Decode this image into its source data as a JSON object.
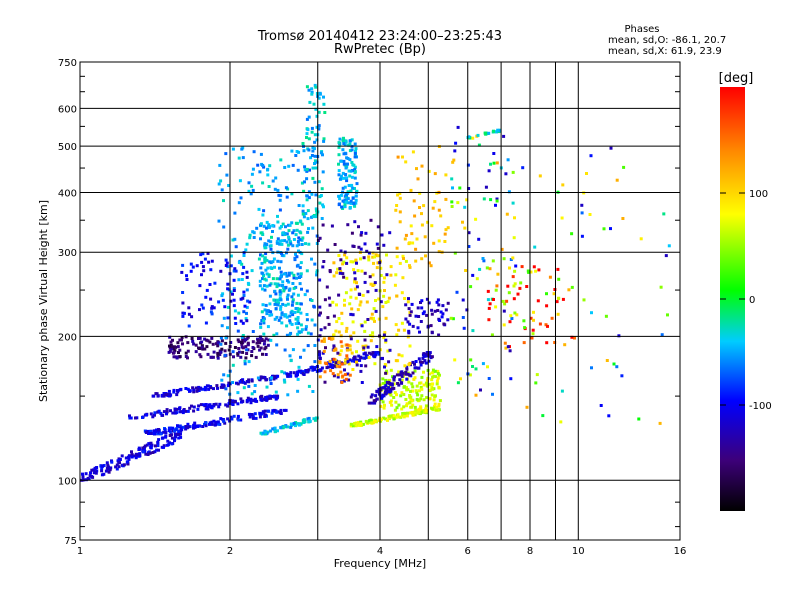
{
  "chart_data": {
    "type": "scatter",
    "title": "Tromsø 20140412 23:24:00–23:25:43",
    "subtitle": "RwPretec (Bp)",
    "xlabel": "Frequency [MHz]",
    "ylabel": "Stationary phase Virtual Height [km]",
    "x_scale": "log",
    "y_scale": "log",
    "xlim": [
      1,
      16
    ],
    "ylim": [
      75,
      750
    ],
    "x_ticks": [
      1,
      2,
      4,
      6,
      8,
      10,
      16
    ],
    "x_tick_labels": [
      "1",
      "2",
      "4",
      "6",
      "8",
      "10",
      "16"
    ],
    "x_grid": [
      1,
      2,
      3,
      4,
      5,
      6,
      7,
      8,
      9,
      10,
      16
    ],
    "y_ticks": [
      75,
      100,
      200,
      300,
      400,
      500,
      600,
      750
    ],
    "y_tick_labels": [
      "75",
      "100",
      "200",
      "300",
      "400",
      "500",
      "600",
      "750"
    ],
    "y_grid": [
      100,
      200,
      300,
      400,
      500,
      600
    ],
    "grid": true,
    "stats": {
      "heading": "Phases",
      "o_line": "mean, sd,O: -86.1, 20.7",
      "x_line": "mean, sd,X: 61.9, 23.9"
    },
    "colorbar": {
      "title": "[deg]",
      "range": [
        -200,
        200
      ],
      "ticks": [
        100,
        0,
        -100
      ],
      "tick_labels": [
        "100",
        "0",
        "-100"
      ],
      "colormap": "rainbow"
    },
    "clusters": [
      {
        "x": [
          1.0,
          1.6
        ],
        "y": [
          100,
          125
        ],
        "phase": -110,
        "shape": "line",
        "n": 140
      },
      {
        "x": [
          1.35,
          2.6
        ],
        "y": [
          125,
          140
        ],
        "phase": -100,
        "shape": "line",
        "n": 140
      },
      {
        "x": [
          1.25,
          2.5
        ],
        "y": [
          135,
          150
        ],
        "phase": -110,
        "shape": "line",
        "n": 120
      },
      {
        "x": [
          1.4,
          2.5
        ],
        "y": [
          150,
          165
        ],
        "phase": -110,
        "shape": "line",
        "n": 100
      },
      {
        "x": [
          1.5,
          2.4
        ],
        "y": [
          180,
          200
        ],
        "phase": -150,
        "shape": "cloud",
        "n": 150
      },
      {
        "x": [
          1.9,
          3.0
        ],
        "y": [
          150,
          500
        ],
        "phase": -50,
        "shape": "cloud",
        "n": 260
      },
      {
        "x": [
          2.3,
          2.8
        ],
        "y": [
          200,
          350
        ],
        "phase": -45,
        "shape": "cloud",
        "n": 220
      },
      {
        "x": [
          2.8,
          3.1
        ],
        "y": [
          350,
          680
        ],
        "phase": -40,
        "shape": "cloud",
        "n": 90
      },
      {
        "x": [
          3.3,
          3.6
        ],
        "y": [
          370,
          520
        ],
        "phase": -45,
        "shape": "cloud",
        "n": 120
      },
      {
        "x": [
          1.6,
          2.2
        ],
        "y": [
          210,
          300
        ],
        "phase": -100,
        "shape": "cloud",
        "n": 80
      },
      {
        "x": [
          2.6,
          4.0
        ],
        "y": [
          165,
          185
        ],
        "phase": -110,
        "shape": "line",
        "n": 110
      },
      {
        "x": [
          2.3,
          3.0
        ],
        "y": [
          125,
          135
        ],
        "phase": -40,
        "shape": "line",
        "n": 60
      },
      {
        "x": [
          3.5,
          5.0
        ],
        "y": [
          130,
          140
        ],
        "phase": 65,
        "shape": "line",
        "n": 120
      },
      {
        "x": [
          4.0,
          5.3
        ],
        "y": [
          140,
          170
        ],
        "phase": 65,
        "shape": "cloud",
        "n": 160
      },
      {
        "x": [
          3.8,
          5.1
        ],
        "y": [
          145,
          185
        ],
        "phase": -120,
        "shape": "line",
        "n": 110
      },
      {
        "x": [
          3.2,
          4.6
        ],
        "y": [
          170,
          300
        ],
        "phase": 90,
        "shape": "cloud",
        "n": 160
      },
      {
        "x": [
          3.0,
          4.2
        ],
        "y": [
          160,
          350
        ],
        "phase": -130,
        "shape": "cloud",
        "n": 120
      },
      {
        "x": [
          3.0,
          3.5
        ],
        "y": [
          160,
          200
        ],
        "phase": 140,
        "shape": "cloud",
        "n": 40
      },
      {
        "x": [
          4.3,
          5.5
        ],
        "y": [
          280,
          500
        ],
        "phase": 110,
        "shape": "cloud",
        "n": 60
      },
      {
        "x": [
          4.5,
          5.5
        ],
        "y": [
          200,
          240
        ],
        "phase": -120,
        "shape": "cloud",
        "n": 50
      },
      {
        "x": [
          5.5,
          7.5
        ],
        "y": [
          150,
          550
        ],
        "phase": 0,
        "shape": "sparse",
        "n": 90
      },
      {
        "x": [
          6.0,
          7.0
        ],
        "y": [
          520,
          540
        ],
        "phase": -30,
        "shape": "line",
        "n": 20
      },
      {
        "x": [
          6.5,
          10.0
        ],
        "y": [
          190,
          280
        ],
        "phase": 150,
        "shape": "sparse",
        "n": 70
      },
      {
        "x": [
          7.0,
          16.0
        ],
        "y": [
          130,
          500
        ],
        "phase": 0,
        "shape": "sparse",
        "n": 50
      }
    ]
  }
}
